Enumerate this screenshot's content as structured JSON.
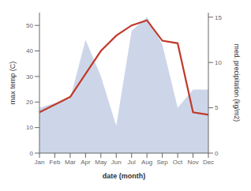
{
  "chart_data": {
    "type": "line",
    "categories": [
      "Jan",
      "Feb",
      "Mar",
      "Apr",
      "May",
      "Jun",
      "Jul",
      "Aug",
      "Sep",
      "Oct",
      "Nov",
      "Dec"
    ],
    "series": [
      {
        "type": "line",
        "color": "#c0392b",
        "values": [
          16,
          19,
          22,
          31,
          40,
          46,
          50,
          52,
          44,
          43,
          16,
          15
        ]
      },
      {
        "type": "area",
        "color": "#b8c4e0",
        "axis": "y2",
        "values": [
          5.0,
          5.5,
          6.0,
          12.5,
          8.5,
          3.0,
          13.5,
          15.0,
          12.0,
          5.0,
          7.0,
          7.0
        ]
      }
    ],
    "xlabel": "date (month)",
    "ylabel": "max temp (C)",
    "y2label": "med. precipitation (kg/m2)",
    "ylim": [
      0,
      55
    ],
    "yticks": [
      0,
      10,
      20,
      30,
      40,
      50
    ],
    "y2lim": [
      0,
      15.5
    ],
    "y2ticks": [
      0,
      5,
      10,
      15
    ],
    "grid": false
  }
}
